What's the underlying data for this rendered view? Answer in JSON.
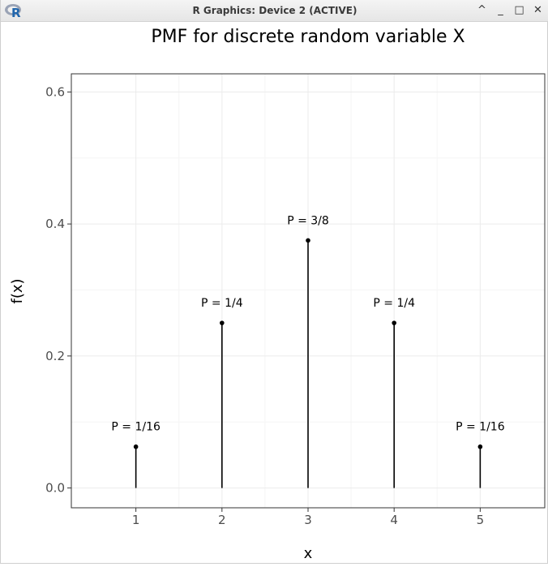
{
  "window": {
    "title": "R Graphics: Device 2 (ACTIVE)",
    "app_icon_letter": "R",
    "controls": {
      "minimize_up": "^",
      "minimize": "_",
      "maximize": "□",
      "close": "✕"
    }
  },
  "chart_data": {
    "type": "lollipop",
    "title": "PMF for discrete random variable X",
    "xlabel": "x",
    "ylabel": "f(x)",
    "x": [
      1,
      2,
      3,
      4,
      5
    ],
    "values": [
      0.0625,
      0.25,
      0.375,
      0.25,
      0.0625
    ],
    "labels": [
      "P = 1/16",
      "P = 1/4",
      "P = 3/8",
      "P = 1/4",
      "P = 1/16"
    ],
    "xticks": [
      "1",
      "2",
      "3",
      "4",
      "5"
    ],
    "yticks": [
      "0.0",
      "0.2",
      "0.4",
      "0.6"
    ],
    "ytick_values": [
      0,
      0.2,
      0.4,
      0.6
    ],
    "xlim": [
      0.25,
      5.75
    ],
    "ylim": [
      -0.03,
      0.6275
    ],
    "grid": true,
    "colors": {
      "panel_border": "#333333",
      "grid_major": "#ebebeb",
      "grid_minor": "#f5f5f5",
      "mark": "#000000",
      "tick_text": "#4d4d4d"
    }
  }
}
